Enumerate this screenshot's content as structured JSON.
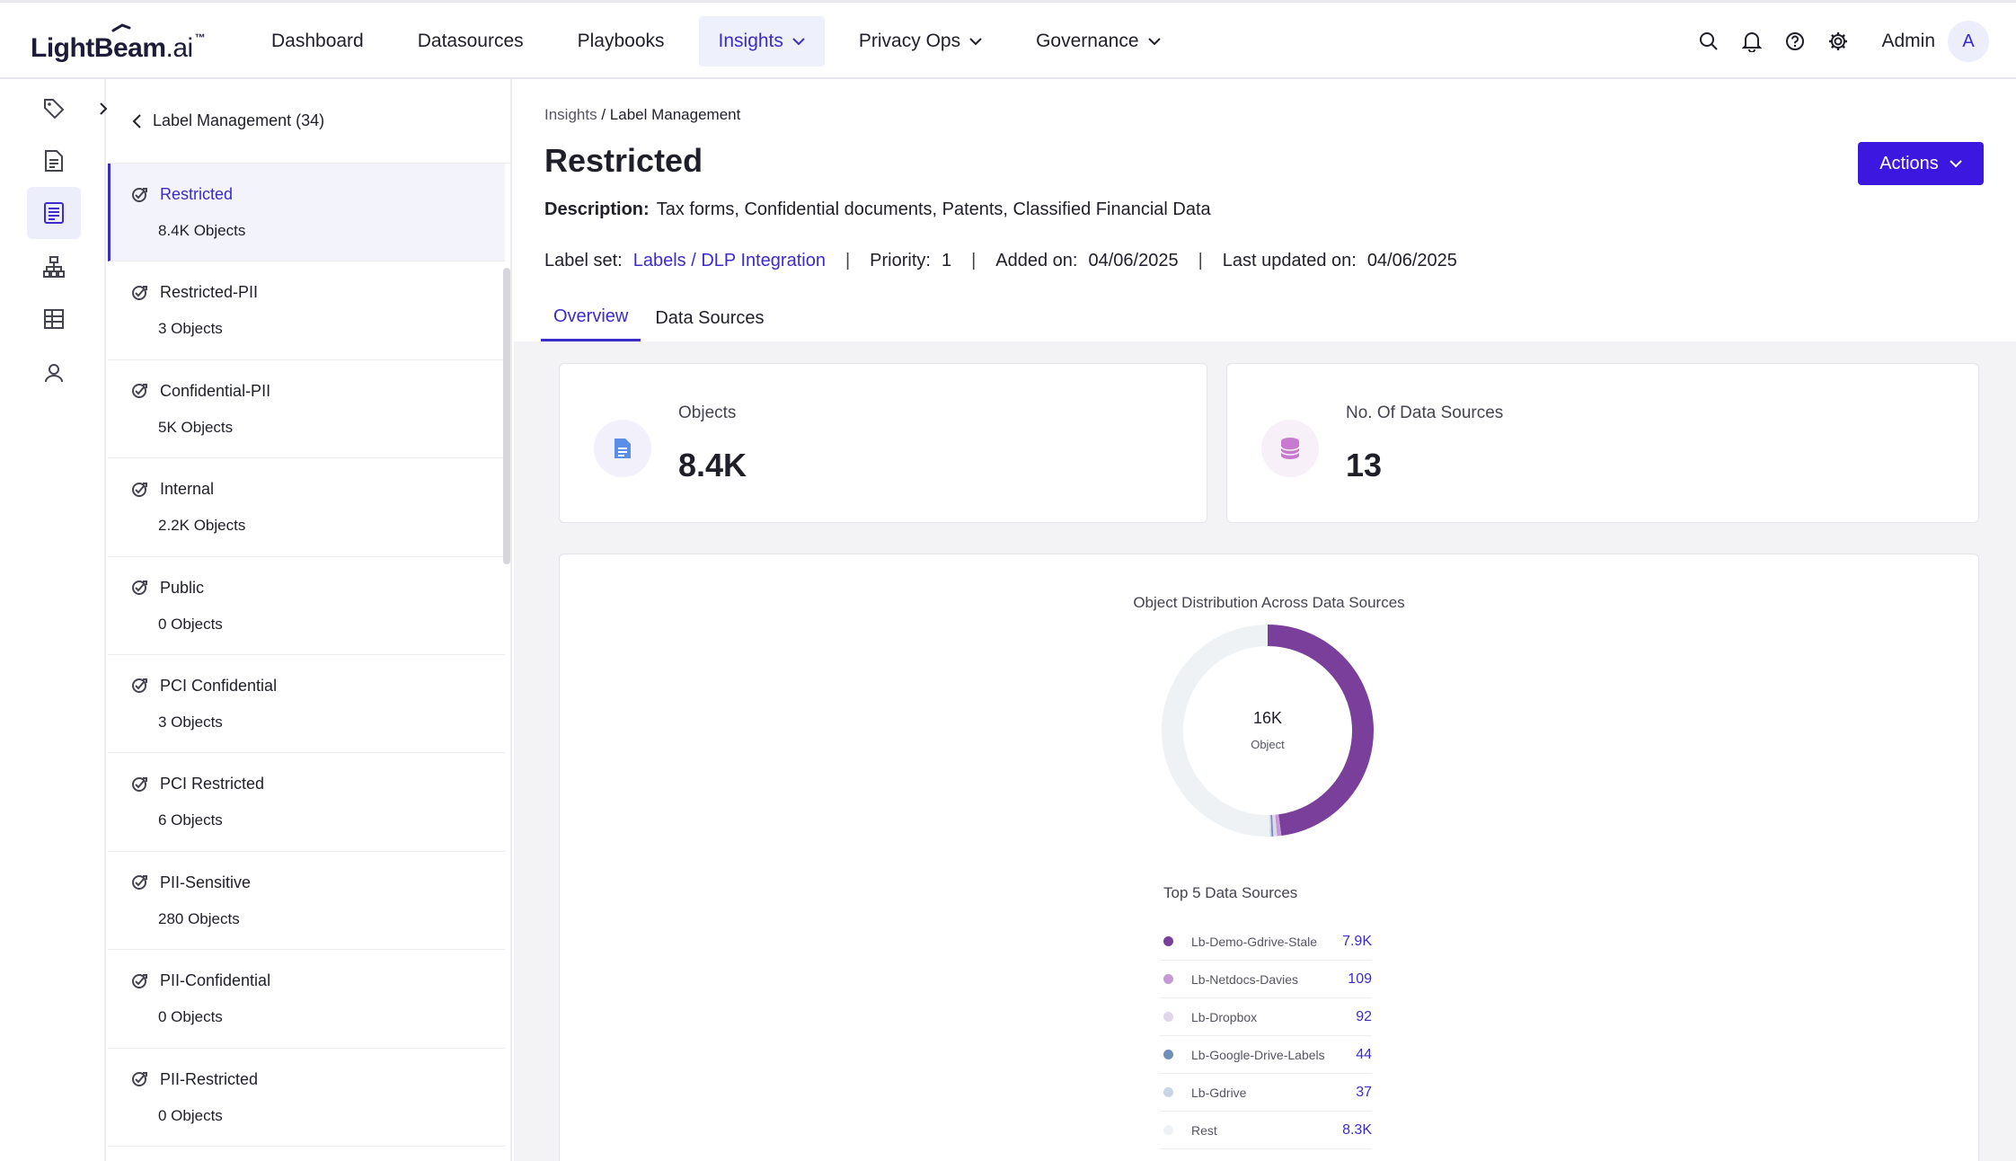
{
  "app": {
    "logo_text": "LightBeam",
    "logo_suffix": ".ai",
    "logo_tm": "™"
  },
  "nav": {
    "items": [
      {
        "label": "Dashboard"
      },
      {
        "label": "Datasources"
      },
      {
        "label": "Playbooks"
      },
      {
        "label": "Insights",
        "active": true
      },
      {
        "label": "Privacy Ops"
      },
      {
        "label": "Governance"
      }
    ],
    "user_label": "Admin",
    "avatar_letter": "A"
  },
  "label_list": {
    "header": "Label Management (34)",
    "items": [
      {
        "name": "Restricted",
        "count": "8.4K Objects"
      },
      {
        "name": "Restricted-PII",
        "count": "3 Objects"
      },
      {
        "name": "Confidential-PII",
        "count": "5K Objects"
      },
      {
        "name": "Internal",
        "count": "2.2K Objects"
      },
      {
        "name": "Public",
        "count": "0 Objects"
      },
      {
        "name": "PCI Confidential",
        "count": "3 Objects"
      },
      {
        "name": "PCI Restricted",
        "count": "6 Objects"
      },
      {
        "name": "PII-Sensitive",
        "count": "280 Objects"
      },
      {
        "name": "PII-Confidential",
        "count": "0 Objects"
      },
      {
        "name": "PII-Restricted",
        "count": "0 Objects"
      }
    ]
  },
  "breadcrumb": {
    "parent": "Insights",
    "sep": "/",
    "current": "Label Management"
  },
  "page": {
    "title": "Restricted",
    "actions_label": "Actions",
    "description_label": "Description:",
    "description": "Tax forms, Confidential documents, Patents, Classified Financial Data",
    "label_set_label": "Label set:",
    "label_set": "Labels / DLP Integration",
    "priority_label": "Priority:",
    "priority": "1",
    "added_label": "Added on:",
    "added": "04/06/2025",
    "updated_label": "Last updated on:",
    "updated": "04/06/2025",
    "separator": "|"
  },
  "tabs": [
    {
      "label": "Overview",
      "active": true
    },
    {
      "label": "Data Sources"
    }
  ],
  "stats": {
    "objects_label": "Objects",
    "objects_value": "8.4K",
    "sources_label": "No. Of Data Sources",
    "sources_value": "13"
  },
  "chart_data": {
    "type": "pie",
    "title": "Object Distribution Across Data Sources",
    "center_value": "16K",
    "center_label": "Object",
    "legend_title": "Top 5 Data Sources",
    "slices": [
      {
        "name": "Lb-Demo-Gdrive-Stale",
        "label": "7.9K",
        "value": 7900,
        "color": "#7a3f9a"
      },
      {
        "name": "Lb-Netdocs-Davies",
        "label": "109",
        "value": 109,
        "color": "#c59ad6"
      },
      {
        "name": "Lb-Dropbox",
        "label": "92",
        "value": 92,
        "color": "#e2d6ef"
      },
      {
        "name": "Lb-Google-Drive-Labels",
        "label": "44",
        "value": 44,
        "color": "#6f8fb8"
      },
      {
        "name": "Lb-Gdrive",
        "label": "37",
        "value": 37,
        "color": "#c9d5e6"
      },
      {
        "name": "Rest",
        "label": "8.3K",
        "value": 8300,
        "color": "#eef2f4"
      }
    ]
  }
}
